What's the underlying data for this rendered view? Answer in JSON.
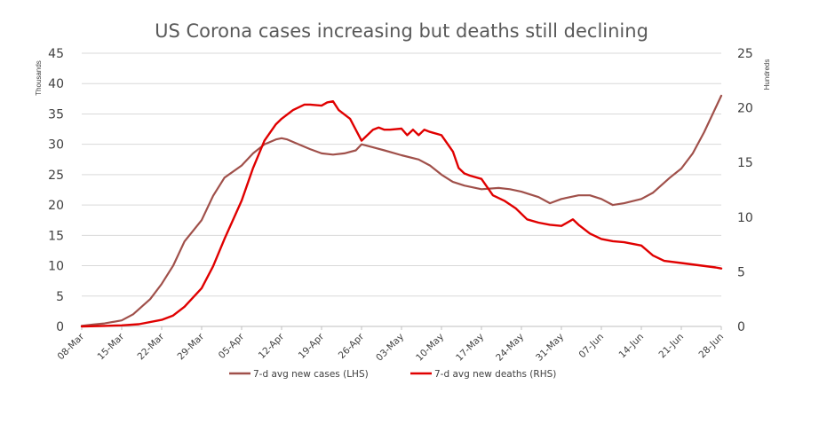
{
  "chart_data": {
    "type": "line",
    "title": "US Corona cases increasing but deaths still declining",
    "y_left_unit": "Thousands",
    "y_right_unit": "Hundreds",
    "ylim_left": [
      0,
      45
    ],
    "ylim_right": [
      0,
      25
    ],
    "yticks_left": [
      "0",
      "5",
      "10",
      "15",
      "20",
      "25",
      "30",
      "35",
      "40",
      "45"
    ],
    "yticks_right": [
      "0",
      "5",
      "10",
      "15",
      "20",
      "25"
    ],
    "xticks": [
      "08-Mar",
      "15-Mar",
      "22-Mar",
      "29-Mar",
      "05-Apr",
      "12-Apr",
      "19-Apr",
      "26-Apr",
      "03-May",
      "10-May",
      "17-May",
      "24-May",
      "31-May",
      "07-Jun",
      "14-Jun",
      "21-Jun",
      "28-Jun"
    ],
    "grid": true,
    "legend_position": "bottom",
    "series": [
      {
        "name": "7-d avg new cases (LHS)",
        "axis": "left",
        "color": "#a0504a",
        "x": [
          "08-Mar",
          "10-Mar",
          "12-Mar",
          "15-Mar",
          "17-Mar",
          "20-Mar",
          "22-Mar",
          "24-Mar",
          "26-Mar",
          "29-Mar",
          "31-Mar",
          "02-Apr",
          "05-Apr",
          "07-Apr",
          "09-Apr",
          "11-Apr",
          "12-Apr",
          "13-Apr",
          "15-Apr",
          "17-Apr",
          "19-Apr",
          "21-Apr",
          "23-Apr",
          "25-Apr",
          "26-Apr",
          "28-Apr",
          "30-Apr",
          "03-May",
          "06-May",
          "08-May",
          "10-May",
          "12-May",
          "14-May",
          "17-May",
          "20-May",
          "22-May",
          "24-May",
          "27-May",
          "29-May",
          "31-May",
          "03-Jun",
          "05-Jun",
          "07-Jun",
          "09-Jun",
          "11-Jun",
          "14-Jun",
          "16-Jun",
          "19-Jun",
          "21-Jun",
          "23-Jun",
          "25-Jun",
          "28-Jun"
        ],
        "values": [
          0.1,
          0.3,
          0.5,
          1.0,
          2.0,
          4.5,
          7.0,
          10.0,
          14.0,
          17.5,
          21.5,
          24.5,
          26.5,
          28.5,
          30.0,
          30.8,
          31.0,
          30.8,
          30.0,
          29.2,
          28.5,
          28.3,
          28.5,
          29.0,
          30.0,
          29.5,
          29.0,
          28.2,
          27.5,
          26.5,
          25.0,
          23.8,
          23.2,
          22.6,
          22.8,
          22.6,
          22.2,
          21.3,
          20.3,
          21.0,
          21.6,
          21.6,
          21.0,
          20.0,
          20.3,
          21.0,
          22.0,
          24.5,
          26.0,
          28.5,
          32.0,
          38.0
        ]
      },
      {
        "name": "7-d avg new deaths (RHS)",
        "axis": "right",
        "color": "#e00000",
        "x": [
          "08-Mar",
          "12-Mar",
          "15-Mar",
          "18-Mar",
          "22-Mar",
          "24-Mar",
          "26-Mar",
          "29-Mar",
          "31-Mar",
          "02-Apr",
          "05-Apr",
          "07-Apr",
          "09-Apr",
          "11-Apr",
          "12-Apr",
          "14-Apr",
          "16-Apr",
          "17-Apr",
          "19-Apr",
          "20-Apr",
          "21-Apr",
          "22-Apr",
          "24-Apr",
          "26-Apr",
          "28-Apr",
          "29-Apr",
          "30-Apr",
          "01-May",
          "03-May",
          "04-May",
          "05-May",
          "06-May",
          "07-May",
          "08-May",
          "10-May",
          "12-May",
          "13-May",
          "14-May",
          "15-May",
          "17-May",
          "19-May",
          "21-May",
          "23-May",
          "25-May",
          "27-May",
          "29-May",
          "31-May",
          "02-Jun",
          "03-Jun",
          "05-Jun",
          "07-Jun",
          "09-Jun",
          "11-Jun",
          "14-Jun",
          "16-Jun",
          "18-Jun",
          "21-Jun",
          "24-Jun",
          "27-Jun",
          "28-Jun"
        ],
        "values": [
          0.0,
          0.05,
          0.1,
          0.2,
          0.6,
          1.0,
          1.8,
          3.5,
          5.5,
          8.0,
          11.5,
          14.5,
          17.0,
          18.5,
          19.0,
          19.8,
          20.3,
          20.3,
          20.2,
          20.5,
          20.6,
          19.8,
          19.0,
          17.0,
          18.0,
          18.2,
          18.0,
          18.0,
          18.1,
          17.5,
          18.0,
          17.5,
          18.0,
          17.8,
          17.5,
          16.0,
          14.5,
          14.0,
          13.8,
          13.5,
          12.0,
          11.5,
          10.8,
          9.8,
          9.5,
          9.3,
          9.2,
          9.8,
          9.3,
          8.5,
          8.0,
          7.8,
          7.7,
          7.4,
          6.5,
          6.0,
          5.8,
          5.6,
          5.4,
          5.3
        ]
      }
    ]
  }
}
